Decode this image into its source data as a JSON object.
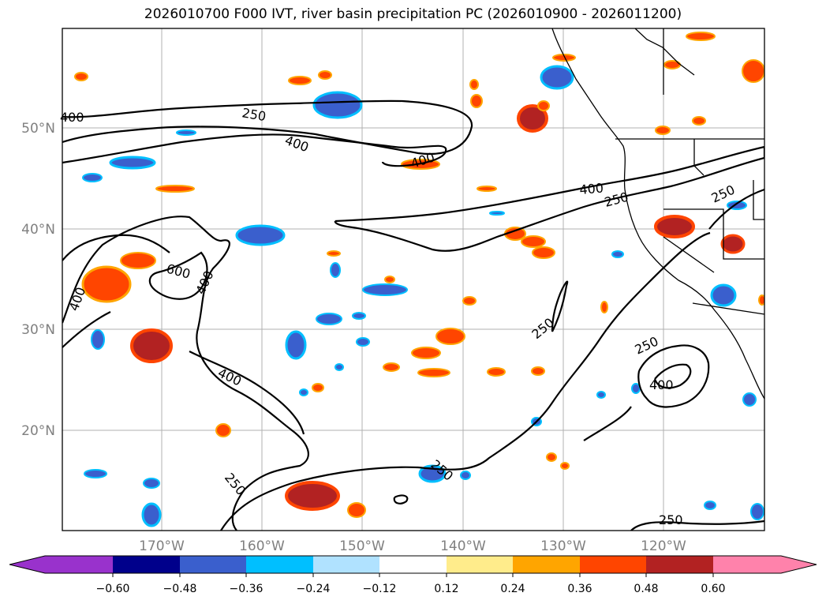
{
  "title": "2026010700 F000 IVT, river basin precipitation PC (2026010900 - 2026011200)",
  "latitude_labels": [
    "50°N",
    "40°N",
    "30°N",
    "20°N"
  ],
  "longitude_labels": [
    "170°W",
    "160°W",
    "150°W",
    "140°W",
    "130°W",
    "120°W"
  ],
  "contour_labels": [
    "400",
    "250",
    "400",
    "400",
    "400",
    "250",
    "250",
    "400",
    "600",
    "400",
    "250",
    "250",
    "400",
    "400",
    "250",
    "250",
    "250"
  ],
  "colorbar": {
    "tick_labels": [
      "−0.60",
      "−0.48",
      "−0.36",
      "−0.24",
      "−0.12",
      "0.12",
      "0.24",
      "0.36",
      "0.48",
      "0.60"
    ],
    "colors": [
      "#9932cc",
      "#00008b",
      "#3a5fcd",
      "#00bfff",
      "#b0e2ff",
      "#ffffff",
      "#ffec8b",
      "#ffa500",
      "#ff4500",
      "#b22222",
      "#ff82ab"
    ]
  }
}
